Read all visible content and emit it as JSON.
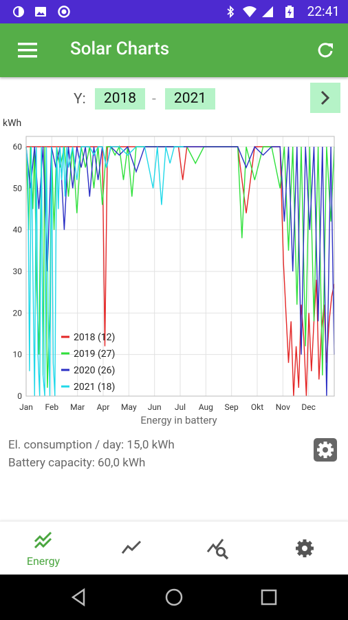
{
  "status": {
    "time": "22:41"
  },
  "app": {
    "title": "Solar Charts"
  },
  "years": {
    "label": "Y:",
    "from": "2018",
    "separator": "-",
    "to": "2021"
  },
  "chart_data": {
    "type": "line",
    "title": "",
    "xlabel": "Energy in battery",
    "ylabel": "kWh",
    "ylim": [
      0,
      60
    ],
    "yticks": [
      "0",
      "10",
      "20",
      "30",
      "40",
      "50",
      "60"
    ],
    "months": [
      "Jan",
      "Feb",
      "Mar",
      "Apr",
      "May",
      "Jun",
      "Jul",
      "Aug",
      "Sep",
      "Okt",
      "Nov",
      "Dec"
    ],
    "legend_position": "bottom-left",
    "grid": true,
    "series": [
      {
        "name": "2018 (12)",
        "color": "#e32626",
        "x": [
          0,
          10,
          20,
          30,
          40,
          50,
          60,
          70,
          80,
          90,
          93,
          96,
          100,
          110,
          120,
          130,
          140,
          160,
          180,
          185,
          190,
          200,
          230,
          240,
          250,
          260,
          270,
          280,
          290,
          295,
          300,
          304,
          307,
          310,
          313,
          316,
          319,
          322,
          325,
          328,
          331,
          334,
          337,
          340,
          343,
          346,
          349,
          352,
          355,
          358,
          361,
          364
        ],
        "y": [
          60,
          60,
          60,
          60,
          60,
          60,
          60,
          60,
          60,
          60,
          12,
          60,
          60,
          60,
          60,
          60,
          60,
          60,
          60,
          52,
          60,
          60,
          60,
          60,
          60,
          44,
          60,
          60,
          60,
          60,
          60,
          32,
          20,
          8,
          18,
          0,
          12,
          2,
          22,
          14,
          0,
          20,
          6,
          18,
          28,
          4,
          16,
          22,
          8,
          18,
          24,
          27
        ]
      },
      {
        "name": "2019 (27)",
        "color": "#2ee03a",
        "x": [
          0,
          3,
          5,
          8,
          10,
          12,
          15,
          18,
          20,
          22,
          25,
          28,
          30,
          33,
          36,
          40,
          45,
          50,
          55,
          60,
          65,
          70,
          75,
          80,
          85,
          90,
          95,
          100,
          105,
          110,
          115,
          120,
          125,
          130,
          140,
          150,
          160,
          170,
          180,
          190,
          200,
          210,
          220,
          230,
          240,
          250,
          255,
          260,
          270,
          280,
          290,
          300,
          305,
          310,
          315,
          320,
          325,
          330,
          335,
          340,
          345,
          350,
          355,
          360,
          364
        ],
        "y": [
          60,
          40,
          60,
          45,
          60,
          28,
          10,
          60,
          5,
          60,
          2,
          20,
          60,
          40,
          60,
          55,
          60,
          48,
          60,
          44,
          60,
          55,
          60,
          50,
          60,
          46,
          60,
          60,
          58,
          60,
          52,
          60,
          48,
          60,
          60,
          60,
          60,
          60,
          60,
          60,
          56,
          60,
          60,
          60,
          60,
          60,
          38,
          60,
          52,
          60,
          60,
          50,
          60,
          35,
          60,
          22,
          60,
          12,
          60,
          18,
          60,
          5,
          60,
          42,
          60
        ]
      },
      {
        "name": "2020 (26)",
        "color": "#2a2ec4",
        "x": [
          0,
          5,
          10,
          15,
          20,
          25,
          30,
          35,
          40,
          45,
          50,
          55,
          60,
          65,
          70,
          75,
          80,
          85,
          90,
          95,
          100,
          110,
          120,
          130,
          140,
          150,
          160,
          170,
          180,
          190,
          200,
          210,
          220,
          230,
          240,
          250,
          260,
          270,
          280,
          290,
          300,
          305,
          310,
          315,
          320,
          325,
          330,
          335,
          340,
          345,
          350,
          355,
          360,
          364
        ],
        "y": [
          60,
          50,
          60,
          45,
          60,
          30,
          60,
          55,
          60,
          40,
          60,
          50,
          60,
          55,
          60,
          48,
          60,
          52,
          60,
          55,
          60,
          58,
          60,
          54,
          60,
          60,
          60,
          60,
          60,
          60,
          60,
          60,
          60,
          60,
          60,
          60,
          55,
          60,
          58,
          60,
          60,
          42,
          60,
          30,
          60,
          10,
          60,
          40,
          60,
          18,
          60,
          0,
          60,
          10
        ]
      },
      {
        "name": "2021 (18)",
        "color": "#20d8e8",
        "x": [
          0,
          2,
          4,
          6,
          8,
          10,
          12,
          14,
          16,
          18,
          20,
          22,
          24,
          26,
          28,
          30,
          32,
          34,
          36,
          38,
          40,
          42,
          44,
          46,
          48,
          50,
          55,
          60,
          65,
          70,
          75,
          80,
          85,
          90,
          95,
          100,
          110,
          120,
          130,
          140,
          150,
          155,
          160,
          165,
          170,
          175,
          180,
          186
        ],
        "y": [
          60,
          55,
          6,
          60,
          30,
          0,
          60,
          10,
          0,
          60,
          5,
          0,
          60,
          20,
          0,
          60,
          8,
          0,
          60,
          45,
          60,
          52,
          60,
          48,
          60,
          55,
          60,
          52,
          60,
          60,
          60,
          58,
          60,
          60,
          55,
          60,
          60,
          58,
          60,
          60,
          50,
          60,
          46,
          60,
          56,
          60,
          60,
          60
        ]
      }
    ]
  },
  "info": {
    "consumption": "El. consumption / day: 15,0 kWh",
    "battery": "Battery capacity: 60,0 kWh"
  },
  "nav": {
    "energy_label": "Energy"
  }
}
